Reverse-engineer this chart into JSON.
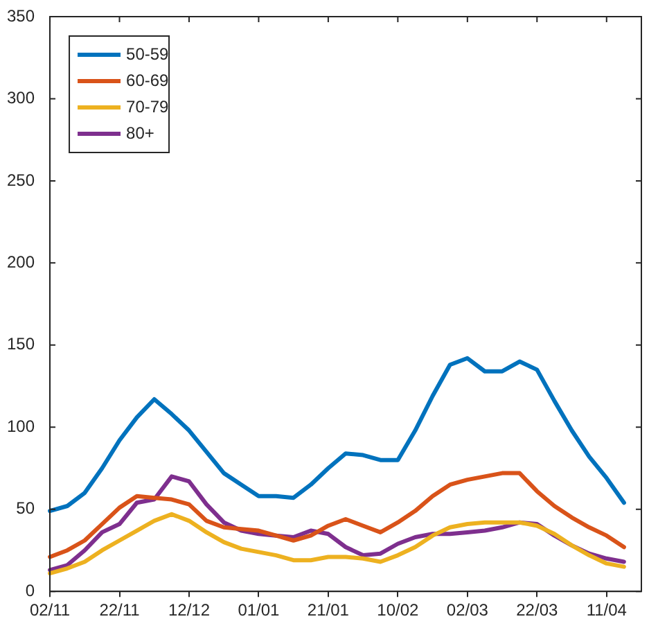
{
  "chart_data": {
    "type": "line",
    "ylim": [
      0,
      350
    ],
    "categories": [
      "02/11",
      null,
      null,
      null,
      "22/11",
      null,
      null,
      null,
      "12/12",
      null,
      null,
      null,
      "01/01",
      null,
      null,
      null,
      "21/01",
      null,
      null,
      null,
      "10/02",
      null,
      null,
      null,
      "02/03",
      null,
      null,
      null,
      "22/03",
      null,
      null,
      null,
      "11/04",
      null,
      null
    ],
    "yticks": [
      0,
      50,
      100,
      150,
      200,
      250,
      300,
      350
    ],
    "grid": false,
    "legend": "top left",
    "marker": "none",
    "line_style": "solid",
    "series": [
      {
        "name": "50-59",
        "color": "#0072bd",
        "values": [
          49,
          52,
          60,
          75,
          92,
          106,
          117,
          108,
          98,
          85,
          72,
          65,
          58,
          58,
          57,
          65,
          75,
          84,
          83,
          80,
          80,
          98,
          119,
          138,
          142,
          134,
          134,
          140,
          135,
          116,
          98,
          82,
          69,
          54,
          null
        ]
      },
      {
        "name": "60-69",
        "color": "#d95319",
        "values": [
          21,
          25,
          31,
          41,
          51,
          58,
          57,
          56,
          53,
          43,
          39,
          38,
          37,
          34,
          31,
          34,
          40,
          44,
          40,
          36,
          42,
          49,
          58,
          65,
          68,
          70,
          72,
          72,
          61,
          52,
          45,
          39,
          34,
          27,
          null
        ]
      },
      {
        "name": "70-79",
        "color": "#edb120",
        "values": [
          11,
          14,
          18,
          25,
          31,
          37,
          43,
          47,
          43,
          36,
          30,
          26,
          24,
          22,
          19,
          19,
          21,
          21,
          20,
          18,
          22,
          27,
          34,
          39,
          41,
          42,
          42,
          42,
          40,
          35,
          28,
          22,
          17,
          15,
          null
        ]
      },
      {
        "name": "80+",
        "color": "#7e2f8e",
        "values": [
          13,
          16,
          25,
          36,
          41,
          54,
          56,
          70,
          67,
          53,
          42,
          37,
          35,
          34,
          33,
          37,
          35,
          27,
          22,
          23,
          29,
          33,
          35,
          35,
          36,
          37,
          39,
          42,
          41,
          34,
          28,
          23,
          20,
          18,
          null
        ]
      }
    ]
  }
}
